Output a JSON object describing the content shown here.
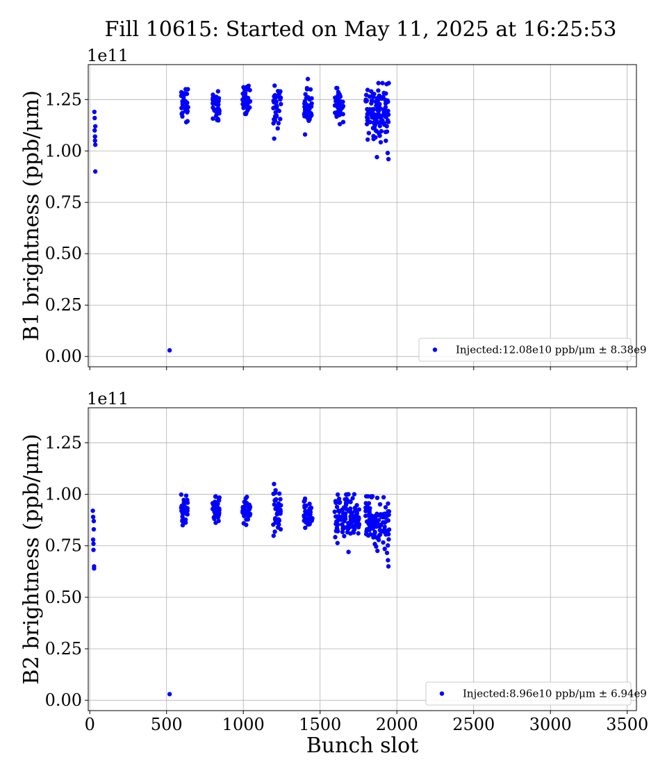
{
  "title": "Fill 10615: Started on May 11, 2025 at 16:25:53",
  "colors": {
    "points": "#0000ff",
    "grid": "#b0b0b0",
    "axes": "#000000",
    "legend_border": "#cccccc"
  },
  "chart_data": [
    {
      "type": "scatter",
      "ylabel": "B1 brightness (ppb/μm)",
      "offset_text": "1e11",
      "xlim": [
        -10,
        3560
      ],
      "ylim": [
        -5000000000.0,
        142000000000.0
      ],
      "x_ticks": [
        0,
        500,
        1000,
        1500,
        2000,
        2500,
        3000,
        3500
      ],
      "y_ticks": [
        0.0,
        0.25,
        0.5,
        0.75,
        1.0,
        1.25
      ],
      "y_tick_labels": [
        "0.00",
        "0.25",
        "0.50",
        "0.75",
        "1.00",
        "1.25"
      ],
      "grid": true,
      "legend": {
        "label": "Injected:12.08e10 ppb/μm ± 8.38e9",
        "placement": "lower right"
      },
      "scale": 100000000000.0,
      "series": [
        {
          "name": "Injected:12.08e10 ppb/μm ± 8.38e9",
          "x": [
            30,
            32,
            32,
            34,
            34,
            36,
            36,
            36,
            520
          ],
          "y": [
            1.19,
            1.16,
            1.1,
            1.07,
            1.05,
            1.12,
            1.03,
            0.9,
            0.03
          ],
          "clusters": [
            {
              "x_start": 595,
              "x_end": 640,
              "n": 38,
              "ymin": 1.1,
              "ymax": 1.3,
              "center": 1.22,
              "seed": 11,
              "outliers": []
            },
            {
              "x_start": 800,
              "x_end": 845,
              "n": 38,
              "ymin": 1.11,
              "ymax": 1.29,
              "center": 1.21,
              "seed": 12,
              "outliers": []
            },
            {
              "x_start": 995,
              "x_end": 1045,
              "n": 40,
              "ymin": 1.09,
              "ymax": 1.33,
              "center": 1.25,
              "seed": 13,
              "outliers": []
            },
            {
              "x_start": 1195,
              "x_end": 1245,
              "n": 40,
              "ymin": 1.06,
              "ymax": 1.34,
              "center": 1.22,
              "seed": 14,
              "outliers": [
                [
                  1201,
                  1.06
                ]
              ]
            },
            {
              "x_start": 1395,
              "x_end": 1450,
              "n": 40,
              "ymin": 1.08,
              "ymax": 1.35,
              "center": 1.22,
              "seed": 15,
              "outliers": [
                [
                  1420,
                  1.35
                ],
                [
                  1402,
                  1.08
                ]
              ]
            },
            {
              "x_start": 1595,
              "x_end": 1655,
              "n": 42,
              "ymin": 1.08,
              "ymax": 1.33,
              "center": 1.22,
              "seed": 16,
              "outliers": []
            },
            {
              "x_start": 1795,
              "x_end": 1950,
              "n": 120,
              "ymin": 0.96,
              "ymax": 1.33,
              "center": 1.19,
              "seed": 17,
              "outliers": [
                [
                  1870,
                  0.97
                ],
                [
                  1945,
                  0.96
                ],
                [
                  1940,
                  0.99
                ],
                [
                  1880,
                  1.33
                ]
              ]
            }
          ]
        }
      ]
    },
    {
      "type": "scatter",
      "ylabel": "B2 brightness (ppb/μm)",
      "offset_text": "1e11",
      "xlabel": "Bunch slot",
      "xlim": [
        -10,
        3560
      ],
      "ylim": [
        -5000000000.0,
        142000000000.0
      ],
      "x_ticks": [
        0,
        500,
        1000,
        1500,
        2000,
        2500,
        3000,
        3500
      ],
      "x_tick_labels": [
        "0",
        "500",
        "1000",
        "1500",
        "2000",
        "2500",
        "3000",
        "3500"
      ],
      "y_ticks": [
        0.0,
        0.25,
        0.5,
        0.75,
        1.0,
        1.25
      ],
      "y_tick_labels": [
        "0.00",
        "0.25",
        "0.50",
        "0.75",
        "1.00",
        "1.25"
      ],
      "grid": true,
      "legend": {
        "label": "Injected:8.96e10 ppb/μm ± 6.94e9",
        "placement": "lower right"
      },
      "scale": 100000000000.0,
      "series": [
        {
          "name": "Injected:8.96e10 ppb/μm ± 6.94e9",
          "x": [
            20,
            22,
            22,
            24,
            24,
            26,
            26,
            28,
            28,
            520
          ],
          "y": [
            0.92,
            0.89,
            0.78,
            0.76,
            0.73,
            0.87,
            0.83,
            0.65,
            0.64,
            0.03
          ],
          "clusters": [
            {
              "x_start": 595,
              "x_end": 640,
              "n": 36,
              "ymin": 0.81,
              "ymax": 1.0,
              "center": 0.92,
              "seed": 21,
              "outliers": []
            },
            {
              "x_start": 800,
              "x_end": 845,
              "n": 36,
              "ymin": 0.81,
              "ymax": 0.99,
              "center": 0.92,
              "seed": 22,
              "outliers": []
            },
            {
              "x_start": 995,
              "x_end": 1045,
              "n": 38,
              "ymin": 0.8,
              "ymax": 1.0,
              "center": 0.92,
              "seed": 23,
              "outliers": []
            },
            {
              "x_start": 1195,
              "x_end": 1245,
              "n": 40,
              "ymin": 0.79,
              "ymax": 1.05,
              "center": 0.91,
              "seed": 24,
              "outliers": [
                [
                  1200,
                  1.05
                ]
              ]
            },
            {
              "x_start": 1395,
              "x_end": 1450,
              "n": 38,
              "ymin": 0.79,
              "ymax": 0.99,
              "center": 0.91,
              "seed": 25,
              "outliers": []
            },
            {
              "x_start": 1595,
              "x_end": 1755,
              "n": 110,
              "ymin": 0.72,
              "ymax": 1.0,
              "center": 0.89,
              "seed": 26,
              "outliers": [
                [
                  1685,
                  0.72
                ]
              ]
            },
            {
              "x_start": 1795,
              "x_end": 1950,
              "n": 110,
              "ymin": 0.65,
              "ymax": 0.99,
              "center": 0.87,
              "seed": 27,
              "outliers": [
                [
                  1945,
                  0.65
                ],
                [
                  1942,
                  0.68
                ]
              ]
            }
          ]
        }
      ]
    }
  ]
}
